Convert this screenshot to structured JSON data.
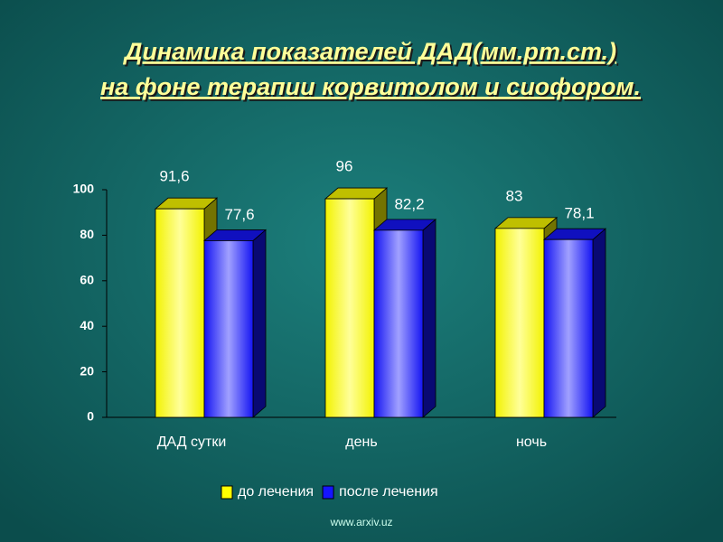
{
  "chart_data": {
    "type": "bar3d",
    "title_lines": [
      "Динамика показателей ДАД(мм.рт.ст.)",
      "на фоне терапии корвитолом и сиофором."
    ],
    "categories": [
      "ДАД сутки",
      "день",
      "ночь"
    ],
    "series": [
      {
        "name": "до лечения",
        "color": "#ffff00",
        "values": [
          91.6,
          96,
          83
        ],
        "value_labels": [
          "91,6",
          "96",
          "83"
        ]
      },
      {
        "name": "после лечения",
        "color": "#1515ff",
        "values": [
          77.6,
          82.2,
          78.1
        ],
        "value_labels": [
          "77,6",
          "82,2",
          "78,1"
        ]
      }
    ],
    "ylim": [
      0,
      100
    ],
    "yticks": [
      0,
      20,
      40,
      60,
      80,
      100
    ],
    "legend": "bottom",
    "footer": "www.arxiv.uz"
  }
}
